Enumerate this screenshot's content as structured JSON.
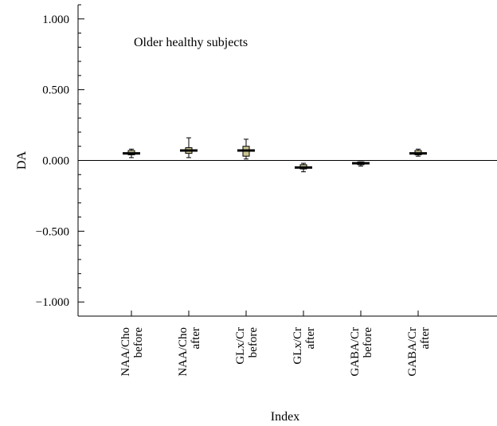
{
  "chart_data": {
    "type": "box",
    "title": "",
    "annotation": "Older healthy subjects",
    "xlabel": "Index",
    "ylabel": "DA",
    "ylim": [
      -1.1,
      1.1
    ],
    "yticks": [
      {
        "value": 1.0,
        "label": "1.000"
      },
      {
        "value": 0.5,
        "label": "0.500"
      },
      {
        "value": 0.0,
        "label": "0.000"
      },
      {
        "value": -0.5,
        "label": "−0.500"
      },
      {
        "value": -1.0,
        "label": "−1.000"
      }
    ],
    "reference_line": 0.0,
    "categories": [
      {
        "line1": "NAA/Cho",
        "line2": "before"
      },
      {
        "line1": "NAA/Cho",
        "line2": "after"
      },
      {
        "line1": "GLx/Cr",
        "line2": "before"
      },
      {
        "line1": "GLx/Cr",
        "line2": "after"
      },
      {
        "line1": "GABA/Cr",
        "line2": "before"
      },
      {
        "line1": "GABA/Cr",
        "line2": "after"
      }
    ],
    "boxes": [
      {
        "min": 0.02,
        "q1": 0.04,
        "median": 0.05,
        "q3": 0.07,
        "max": 0.08
      },
      {
        "min": 0.02,
        "q1": 0.05,
        "median": 0.07,
        "q3": 0.09,
        "max": 0.16
      },
      {
        "min": 0.01,
        "q1": 0.03,
        "median": 0.07,
        "q3": 0.1,
        "max": 0.15
      },
      {
        "min": -0.08,
        "q1": -0.06,
        "median": -0.05,
        "q3": -0.03,
        "max": -0.02
      },
      {
        "min": -0.04,
        "q1": -0.03,
        "median": -0.02,
        "q3": -0.01,
        "max": -0.01
      },
      {
        "min": 0.03,
        "q1": 0.04,
        "median": 0.05,
        "q3": 0.07,
        "max": 0.08
      }
    ],
    "grid": false
  }
}
